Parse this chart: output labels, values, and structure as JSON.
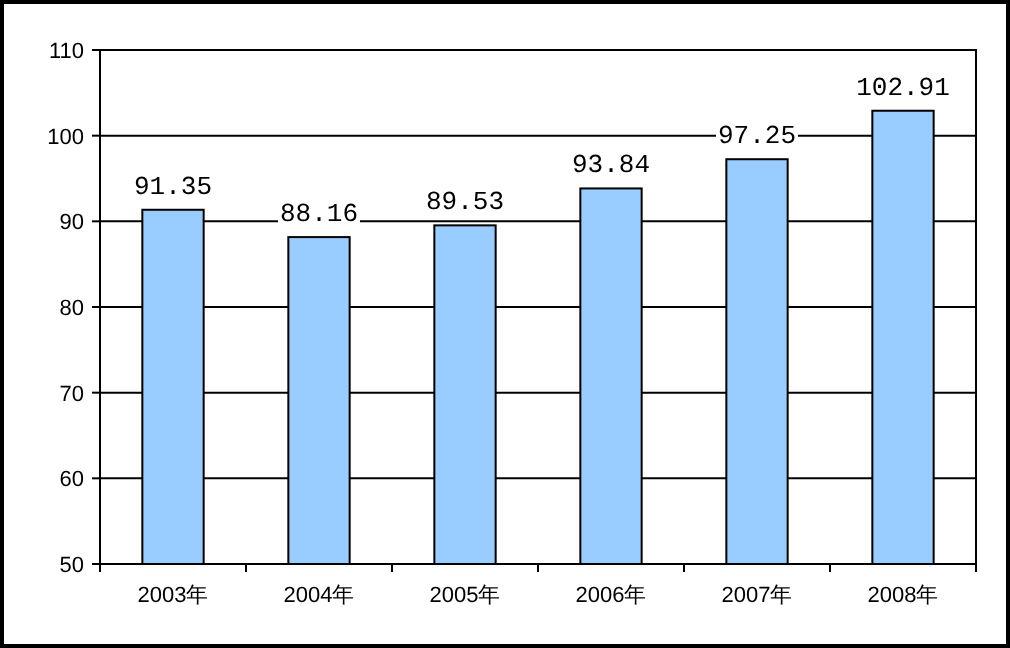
{
  "chart_data": {
    "type": "bar",
    "categories": [
      "2003年",
      "2004年",
      "2005年",
      "2006年",
      "2007年",
      "2008年"
    ],
    "values": [
      91.35,
      88.16,
      89.53,
      93.84,
      97.25,
      102.91
    ],
    "color": "#99ccff",
    "ylim": [
      50,
      110
    ],
    "yticks": [
      50,
      60,
      70,
      80,
      90,
      100,
      110
    ],
    "grid": "y",
    "data_labels": true
  }
}
